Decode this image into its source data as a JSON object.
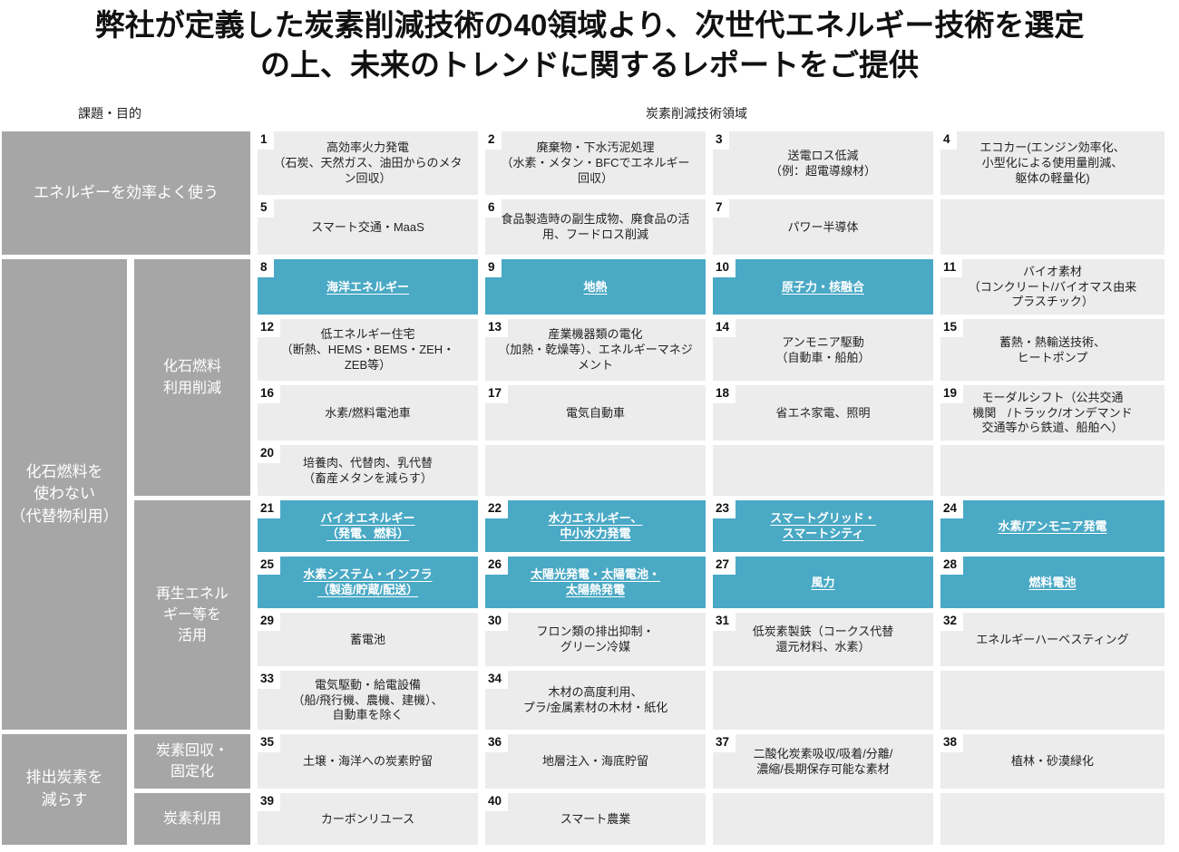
{
  "title": "弊社が定義した炭素削減技術の40領域より、次世代エネルギー技術を選定\nの上、未来のトレンドに関するレポートをご提供",
  "headers": {
    "left": "課題・目的",
    "right": "炭素削減技術領域"
  },
  "colors": {
    "highlight": "#4aa9c5",
    "cell_bg": "#ececec",
    "category_bg": "#a6a6a6"
  },
  "categories": [
    {
      "label": "エネルギーを効率よく使う"
    },
    {
      "label": "化石燃料を\n使わない\n（代替物利用）"
    },
    {
      "label": "排出炭素を\n減らす"
    }
  ],
  "subcategories": [
    {
      "label": "化石燃料\n利用削減"
    },
    {
      "label": "再生エネル\nギー等を\n活用"
    },
    {
      "label": "炭素回収・\n固定化"
    },
    {
      "label": "炭素利用"
    }
  ],
  "cells": [
    {
      "num": "1",
      "label": "高効率火力発電\n（石炭、天然ガス、油田からのメタン回収）",
      "highlighted": false
    },
    {
      "num": "2",
      "label": "廃棄物・下水汚泥処理\n（水素・メタン・BFCでエネルギー回収）",
      "highlighted": false
    },
    {
      "num": "3",
      "label": "送電ロス低減\n（例：超電導線材）",
      "highlighted": false
    },
    {
      "num": "4",
      "label": "エコカー(エンジン効率化、\n小型化による使用量削減、\n躯体の軽量化)",
      "highlighted": false
    },
    {
      "num": "5",
      "label": "スマート交通・MaaS",
      "highlighted": false
    },
    {
      "num": "6",
      "label": "食品製造時の副生成物、廃食品の活用、フードロス削減",
      "highlighted": false
    },
    {
      "num": "7",
      "label": "パワー半導体",
      "highlighted": false
    },
    {
      "num": "8",
      "label": "海洋エネルギー",
      "highlighted": true
    },
    {
      "num": "9",
      "label": "地熱",
      "highlighted": true
    },
    {
      "num": "10",
      "label": "原子力・核融合",
      "highlighted": true
    },
    {
      "num": "11",
      "label": "バイオ素材\n（コンクリート/バイオマス由来\nプラスチック）",
      "highlighted": false
    },
    {
      "num": "12",
      "label": "低エネルギー住宅\n（断熱、HEMS・BEMS・ZEH・\nZEB等）",
      "highlighted": false
    },
    {
      "num": "13",
      "label": "産業機器類の電化\n（加熱・乾燥等）、エネルギーマネジメント",
      "highlighted": false
    },
    {
      "num": "14",
      "label": "アンモニア駆動\n（自動車・船舶）",
      "highlighted": false
    },
    {
      "num": "15",
      "label": "蓄熱・熱輸送技術、\nヒートポンプ",
      "highlighted": false
    },
    {
      "num": "16",
      "label": "水素/燃料電池車",
      "highlighted": false
    },
    {
      "num": "17",
      "label": "電気自動車",
      "highlighted": false
    },
    {
      "num": "18",
      "label": "省エネ家電、照明",
      "highlighted": false
    },
    {
      "num": "19",
      "label": "モーダルシフト（公共交通\n機関　/トラック/オンデマンド\n交通等から鉄道、船舶へ）",
      "highlighted": false
    },
    {
      "num": "20",
      "label": "培養肉、代替肉、乳代替\n（畜産メタンを減らす）",
      "highlighted": false
    },
    {
      "num": "21",
      "label": "バイオエネルギー\n（発電、燃料）",
      "highlighted": true
    },
    {
      "num": "22",
      "label": "水力エネルギー、\n中小水力発電",
      "highlighted": true
    },
    {
      "num": "23",
      "label": "スマートグリッド・\nスマートシティ",
      "highlighted": true
    },
    {
      "num": "24",
      "label": "水素/アンモニア発電",
      "highlighted": true
    },
    {
      "num": "25",
      "label": "水素システム・インフラ\n（製造/貯蔵/配送）",
      "highlighted": true
    },
    {
      "num": "26",
      "label": "太陽光発電・太陽電池・\n太陽熱発電",
      "highlighted": true
    },
    {
      "num": "27",
      "label": "風力",
      "highlighted": true
    },
    {
      "num": "28",
      "label": "燃料電池",
      "highlighted": true
    },
    {
      "num": "29",
      "label": "蓄電池",
      "highlighted": false
    },
    {
      "num": "30",
      "label": "フロン類の排出抑制・\nグリーン冷媒",
      "highlighted": false
    },
    {
      "num": "31",
      "label": "低炭素製鉄（コークス代替\n還元材料、水素）",
      "highlighted": false
    },
    {
      "num": "32",
      "label": "エネルギーハーベスティング",
      "highlighted": false
    },
    {
      "num": "33",
      "label": "電気駆動・給電設備\n（船/飛行機、農機、建機）、\n自動車を除く",
      "highlighted": false
    },
    {
      "num": "34",
      "label": "木材の高度利用、\nプラ/金属素材の木材・紙化",
      "highlighted": false
    },
    {
      "num": "35",
      "label": "土壌・海洋への炭素貯留",
      "highlighted": false
    },
    {
      "num": "36",
      "label": "地層注入・海底貯留",
      "highlighted": false
    },
    {
      "num": "37",
      "label": "二酸化炭素吸収/吸着/分離/\n濃縮/長期保存可能な素材",
      "highlighted": false
    },
    {
      "num": "38",
      "label": "植林・砂漠緑化",
      "highlighted": false
    },
    {
      "num": "39",
      "label": "カーボンリユース",
      "highlighted": false
    },
    {
      "num": "40",
      "label": "スマート農業",
      "highlighted": false
    }
  ]
}
